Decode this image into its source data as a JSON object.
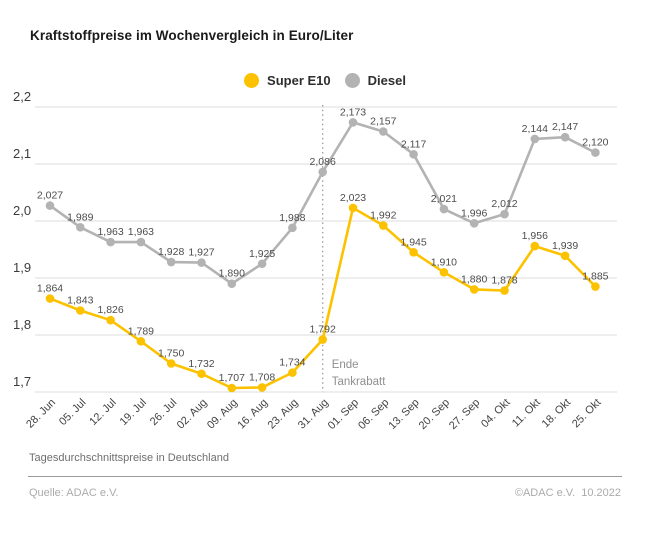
{
  "title": "Kraftstoffpreise im Wochenvergleich in Euro/Liter",
  "chart_data": {
    "type": "line",
    "title": "Kraftstoffpreise im Wochenvergleich in Euro/Liter",
    "categories": [
      "28. Jun",
      "05. Jul",
      "12. Jul",
      "19. Jul",
      "26. Jul",
      "02. Aug",
      "09. Aug",
      "16. Aug",
      "23. Aug",
      "31. Aug",
      "01. Sep",
      "06. Sep",
      "13. Sep",
      "20. Sep",
      "27. Sep",
      "04. Okt",
      "11. Okt",
      "18. Okt",
      "25. Okt"
    ],
    "series": [
      {
        "name": "Super E10",
        "color": "#fcc200",
        "values": [
          1.864,
          1.843,
          1.826,
          1.789,
          1.75,
          1.732,
          1.707,
          1.708,
          1.734,
          1.792,
          2.023,
          1.992,
          1.945,
          1.91,
          1.88,
          1.878,
          1.956,
          1.939,
          1.885
        ]
      },
      {
        "name": "Diesel",
        "color": "#b3b3b3",
        "values": [
          2.027,
          1.989,
          1.963,
          1.963,
          1.928,
          1.927,
          1.89,
          1.925,
          1.988,
          2.086,
          2.173,
          2.157,
          2.117,
          2.021,
          1.996,
          2.012,
          2.144,
          2.147,
          2.12
        ]
      }
    ],
    "ylim": [
      1.7,
      2.2
    ],
    "yticks": [
      2.2,
      2.1,
      2.0,
      1.9,
      1.8,
      1.7
    ],
    "decimal_separator": ",",
    "grid": true,
    "legend_position": "top-center",
    "annotation": {
      "category": "31. Aug",
      "x_index": 9,
      "line1": "Ende",
      "line2": "Tankrabatt"
    }
  },
  "footer": {
    "note": "Tagesdurchschnittspreise in Deutschland",
    "source": "Quelle: ADAC e.V.",
    "copyright": "©ADAC e.V.  10.2022"
  }
}
